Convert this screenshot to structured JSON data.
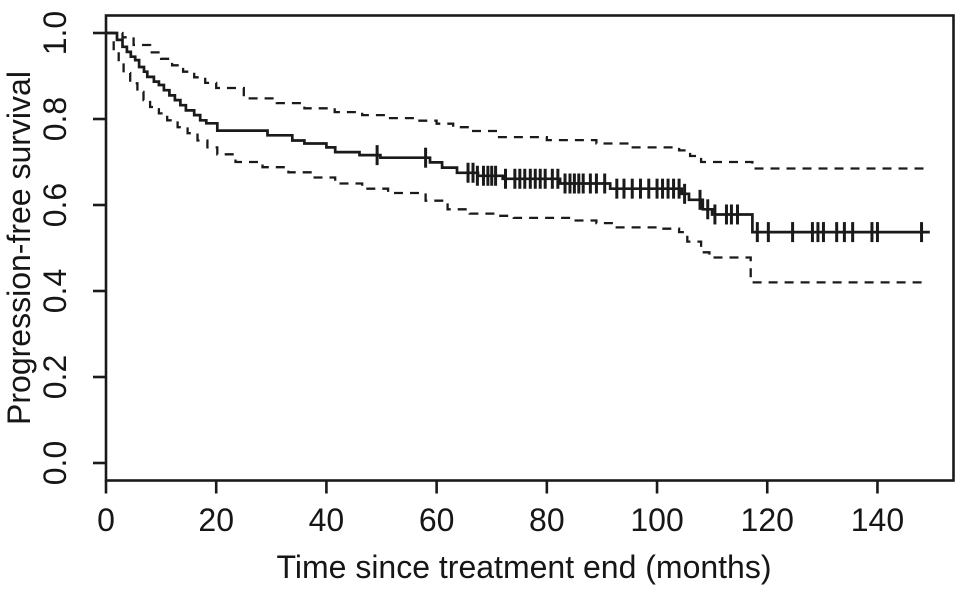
{
  "figure": {
    "background": "#ffffff",
    "line_color": "#1a1a1a",
    "text_color": "#161616"
  },
  "chart_data": {
    "type": "line",
    "subtype": "kaplan-meier-survival-with-95ci",
    "title": "",
    "xlabel": "Time since treatment end (months)",
    "ylabel": "Progression-free survival",
    "xlim": [
      0,
      153.8
    ],
    "ylim": [
      -0.0407,
      1.0407
    ],
    "grid": false,
    "legend": "none",
    "box": true,
    "xticks": {
      "values": [
        0,
        20,
        40,
        60,
        80,
        100,
        120,
        140
      ],
      "labels": [
        "0",
        "20",
        "40",
        "60",
        "80",
        "100",
        "120",
        "140"
      ]
    },
    "yticks": {
      "values": [
        0.0,
        0.2,
        0.4,
        0.6,
        0.8,
        1.0
      ],
      "labels": [
        "0.0",
        "0.2",
        "0.4",
        "0.6",
        "0.8",
        "1.0"
      ]
    },
    "series": [
      {
        "name": "km-estimate",
        "line_style": "solid",
        "end_t": 149.5,
        "steps": [
          [
            0,
            1.0
          ],
          [
            2,
            0.984
          ],
          [
            3,
            0.968
          ],
          [
            3.8,
            0.956
          ],
          [
            4.5,
            0.945
          ],
          [
            5.3,
            0.937
          ],
          [
            6,
            0.921
          ],
          [
            6.9,
            0.91
          ],
          [
            7.5,
            0.898
          ],
          [
            8.7,
            0.887
          ],
          [
            9.6,
            0.879
          ],
          [
            10.5,
            0.867
          ],
          [
            11.5,
            0.855
          ],
          [
            12.5,
            0.844
          ],
          [
            13.5,
            0.832
          ],
          [
            14.5,
            0.82
          ],
          [
            16,
            0.809
          ],
          [
            17.1,
            0.797
          ],
          [
            18.2,
            0.79
          ],
          [
            20.2,
            0.773
          ],
          [
            29.3,
            0.762
          ],
          [
            33.8,
            0.75
          ],
          [
            36,
            0.743
          ],
          [
            40,
            0.734
          ],
          [
            41.6,
            0.723
          ],
          [
            46,
            0.716
          ],
          [
            49.8,
            0.71
          ],
          [
            58.8,
            0.699
          ],
          [
            61,
            0.687
          ],
          [
            63.7,
            0.675
          ],
          [
            67.5,
            0.668
          ],
          [
            72,
            0.661
          ],
          [
            82.4,
            0.65
          ],
          [
            91.5,
            0.638
          ],
          [
            104.5,
            0.626
          ],
          [
            105.8,
            0.612
          ],
          [
            108.3,
            0.59
          ],
          [
            110,
            0.578
          ],
          [
            117.3,
            0.537
          ]
        ]
      },
      {
        "name": "upper-95-ci",
        "line_style": "dashed",
        "end_t": 148.5,
        "steps": [
          [
            0,
            1.0
          ],
          [
            3,
            0.99
          ],
          [
            5,
            0.972
          ],
          [
            8,
            0.955
          ],
          [
            10,
            0.94
          ],
          [
            12,
            0.925
          ],
          [
            14,
            0.91
          ],
          [
            16,
            0.897
          ],
          [
            18,
            0.884
          ],
          [
            20,
            0.872
          ],
          [
            25,
            0.848
          ],
          [
            31,
            0.837
          ],
          [
            36,
            0.825
          ],
          [
            41.5,
            0.816
          ],
          [
            46.5,
            0.809
          ],
          [
            51,
            0.802
          ],
          [
            56,
            0.796
          ],
          [
            60,
            0.789
          ],
          [
            63,
            0.781
          ],
          [
            66,
            0.772
          ],
          [
            71,
            0.758
          ],
          [
            80,
            0.751
          ],
          [
            89,
            0.743
          ],
          [
            95,
            0.734
          ],
          [
            104,
            0.727
          ],
          [
            106,
            0.714
          ],
          [
            108,
            0.7
          ],
          [
            117.3,
            0.685
          ]
        ]
      },
      {
        "name": "lower-95-ci",
        "line_style": "dashed",
        "end_t": 148.5,
        "steps": [
          [
            0,
            1.0
          ],
          [
            1.4,
            0.957
          ],
          [
            2.3,
            0.93
          ],
          [
            3.2,
            0.907
          ],
          [
            4.4,
            0.883
          ],
          [
            5.7,
            0.863
          ],
          [
            6.8,
            0.844
          ],
          [
            8,
            0.828
          ],
          [
            9.6,
            0.813
          ],
          [
            11.1,
            0.797
          ],
          [
            13,
            0.781
          ],
          [
            14.8,
            0.767
          ],
          [
            16.6,
            0.75
          ],
          [
            18.4,
            0.734
          ],
          [
            20.2,
            0.718
          ],
          [
            23.5,
            0.7
          ],
          [
            28.4,
            0.688
          ],
          [
            33.1,
            0.676
          ],
          [
            37.4,
            0.664
          ],
          [
            41.6,
            0.65
          ],
          [
            46.5,
            0.638
          ],
          [
            51.2,
            0.628
          ],
          [
            58,
            0.61
          ],
          [
            62,
            0.59
          ],
          [
            66,
            0.58
          ],
          [
            71,
            0.575
          ],
          [
            74,
            0.57
          ],
          [
            85,
            0.564
          ],
          [
            89,
            0.558
          ],
          [
            92,
            0.548
          ],
          [
            100,
            0.545
          ],
          [
            104,
            0.537
          ],
          [
            105.5,
            0.515
          ],
          [
            108,
            0.49
          ],
          [
            109.5,
            0.478
          ],
          [
            117,
            0.42
          ]
        ]
      }
    ],
    "censor_marks": {
      "series": "km-estimate",
      "points": [
        [
          49.2,
          0.716
        ],
        [
          58,
          0.71
        ],
        [
          65.7,
          0.675
        ],
        [
          66.6,
          0.675
        ],
        [
          67.4,
          0.668
        ],
        [
          68.5,
          0.668
        ],
        [
          69.3,
          0.668
        ],
        [
          70,
          0.668
        ],
        [
          70.7,
          0.668
        ],
        [
          72.5,
          0.661
        ],
        [
          74.2,
          0.661
        ],
        [
          75.1,
          0.661
        ],
        [
          76,
          0.661
        ],
        [
          77,
          0.661
        ],
        [
          77.9,
          0.661
        ],
        [
          78.8,
          0.661
        ],
        [
          79.7,
          0.661
        ],
        [
          81,
          0.661
        ],
        [
          82,
          0.661
        ],
        [
          83.3,
          0.65
        ],
        [
          84.2,
          0.65
        ],
        [
          85,
          0.65
        ],
        [
          85.8,
          0.65
        ],
        [
          86.6,
          0.65
        ],
        [
          87.9,
          0.65
        ],
        [
          89,
          0.65
        ],
        [
          90.5,
          0.65
        ],
        [
          92.7,
          0.638
        ],
        [
          94,
          0.638
        ],
        [
          95.5,
          0.638
        ],
        [
          97,
          0.638
        ],
        [
          98.5,
          0.638
        ],
        [
          100,
          0.638
        ],
        [
          101,
          0.638
        ],
        [
          102,
          0.638
        ],
        [
          103,
          0.638
        ],
        [
          104,
          0.638
        ],
        [
          105,
          0.626
        ],
        [
          107.8,
          0.612
        ],
        [
          109.2,
          0.59
        ],
        [
          110.5,
          0.578
        ],
        [
          112.6,
          0.578
        ],
        [
          113.5,
          0.578
        ],
        [
          114.6,
          0.578
        ],
        [
          118.2,
          0.537
        ],
        [
          120.2,
          0.537
        ],
        [
          124.6,
          0.537
        ],
        [
          128.2,
          0.537
        ],
        [
          129.2,
          0.537
        ],
        [
          130.2,
          0.537
        ],
        [
          132.6,
          0.537
        ],
        [
          134,
          0.537
        ],
        [
          135.5,
          0.537
        ],
        [
          139,
          0.537
        ],
        [
          140,
          0.537
        ],
        [
          148,
          0.537
        ]
      ]
    }
  }
}
